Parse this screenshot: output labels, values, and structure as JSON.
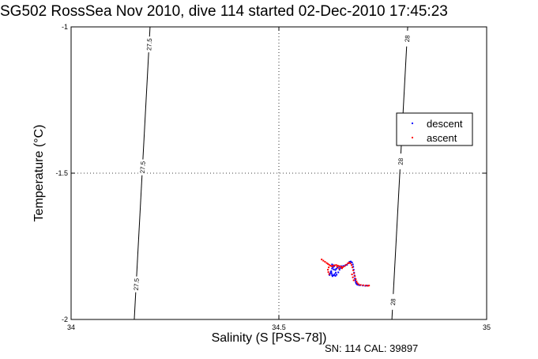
{
  "figure": {
    "title": "SG502 RossSea Nov 2010, dive 114 started 02-Dec-2010 17:45:23",
    "footer": "SN: 114  CAL: 39897"
  },
  "chart_data": {
    "type": "scatter",
    "title": "SG502 RossSea Nov 2010, dive 114 started 02-Dec-2010 17:45:23",
    "xlabel": "Salinity (S [PSS-78])",
    "ylabel": "Temperature (°C)",
    "xlim": [
      34,
      35
    ],
    "ylim": [
      -2,
      -1
    ],
    "xticks": [
      34,
      34.5,
      35
    ],
    "yticks": [
      -2,
      -1.5,
      -1
    ],
    "grid": true,
    "legend": "right",
    "colors": {
      "descent": "#0000ff",
      "ascent": "#ff0000",
      "contour": "#000000"
    },
    "contours": [
      {
        "label": "27.5",
        "points": [
          [
            34.152,
            -2.0
          ],
          [
            34.19,
            -1.0
          ]
        ],
        "label_y": [
          -1.06,
          -1.48,
          -1.88
        ]
      },
      {
        "label": "28",
        "points": [
          [
            34.772,
            -2.0
          ],
          [
            34.81,
            -1.0
          ]
        ],
        "label_y": [
          -1.04,
          -1.46,
          -1.94
        ]
      }
    ],
    "series": [
      {
        "name": "descent",
        "points": [
          [
            34.628,
            -1.812
          ],
          [
            34.631,
            -1.815
          ],
          [
            34.633,
            -1.818
          ],
          [
            34.63,
            -1.822
          ],
          [
            34.628,
            -1.826
          ],
          [
            34.632,
            -1.829
          ],
          [
            34.636,
            -1.831
          ],
          [
            34.638,
            -1.827
          ],
          [
            34.641,
            -1.823
          ],
          [
            34.645,
            -1.82
          ],
          [
            34.65,
            -1.818
          ],
          [
            34.655,
            -1.817
          ],
          [
            34.66,
            -1.815
          ],
          [
            34.664,
            -1.813
          ],
          [
            34.667,
            -1.808
          ],
          [
            34.67,
            -1.803
          ],
          [
            34.673,
            -1.802
          ],
          [
            34.676,
            -1.805
          ],
          [
            34.678,
            -1.812
          ],
          [
            34.679,
            -1.82
          ],
          [
            34.68,
            -1.83
          ],
          [
            34.681,
            -1.84
          ],
          [
            34.682,
            -1.85
          ],
          [
            34.683,
            -1.86
          ],
          [
            34.684,
            -1.866
          ],
          [
            34.685,
            -1.872
          ],
          [
            34.686,
            -1.877
          ],
          [
            34.688,
            -1.88
          ],
          [
            34.691,
            -1.882
          ],
          [
            34.695,
            -1.883
          ],
          [
            34.702,
            -1.884
          ],
          [
            34.708,
            -1.885
          ],
          [
            34.712,
            -1.884
          ],
          [
            34.626,
            -1.835
          ],
          [
            34.627,
            -1.842
          ],
          [
            34.628,
            -1.848
          ],
          [
            34.629,
            -1.852
          ],
          [
            34.632,
            -1.849
          ],
          [
            34.634,
            -1.845
          ],
          [
            34.637,
            -1.84
          ],
          [
            34.625,
            -1.838
          ],
          [
            34.623,
            -1.843
          ],
          [
            34.622,
            -1.848
          ],
          [
            34.636,
            -1.851
          ],
          [
            34.639,
            -1.847
          ],
          [
            34.643,
            -1.839
          ],
          [
            34.646,
            -1.83
          ],
          [
            34.649,
            -1.824
          ]
        ]
      },
      {
        "name": "ascent",
        "points": [
          [
            34.603,
            -1.795
          ],
          [
            34.607,
            -1.799
          ],
          [
            34.611,
            -1.803
          ],
          [
            34.615,
            -1.807
          ],
          [
            34.618,
            -1.81
          ],
          [
            34.621,
            -1.813
          ],
          [
            34.624,
            -1.816
          ],
          [
            34.627,
            -1.818
          ],
          [
            34.63,
            -1.817
          ],
          [
            34.634,
            -1.815
          ],
          [
            34.638,
            -1.814
          ],
          [
            34.642,
            -1.816
          ],
          [
            34.646,
            -1.818
          ],
          [
            34.65,
            -1.82
          ],
          [
            34.654,
            -1.821
          ],
          [
            34.658,
            -1.818
          ],
          [
            34.662,
            -1.813
          ],
          [
            34.666,
            -1.808
          ],
          [
            34.669,
            -1.806
          ],
          [
            34.672,
            -1.808
          ],
          [
            34.675,
            -1.814
          ],
          [
            34.677,
            -1.822
          ],
          [
            34.679,
            -1.832
          ],
          [
            34.681,
            -1.842
          ],
          [
            34.683,
            -1.852
          ],
          [
            34.685,
            -1.862
          ],
          [
            34.687,
            -1.87
          ],
          [
            34.689,
            -1.876
          ],
          [
            34.692,
            -1.88
          ],
          [
            34.697,
            -1.882
          ],
          [
            34.703,
            -1.883
          ],
          [
            34.709,
            -1.884
          ],
          [
            34.714,
            -1.885
          ],
          [
            34.717,
            -1.884
          ],
          [
            34.62,
            -1.822
          ],
          [
            34.618,
            -1.83
          ],
          [
            34.619,
            -1.838
          ],
          [
            34.621,
            -1.845
          ],
          [
            34.64,
            -1.82
          ],
          [
            34.645,
            -1.826
          ],
          [
            34.652,
            -1.825
          ],
          [
            34.676,
            -1.846
          ],
          [
            34.678,
            -1.856
          ],
          [
            34.68,
            -1.866
          ]
        ]
      }
    ]
  }
}
